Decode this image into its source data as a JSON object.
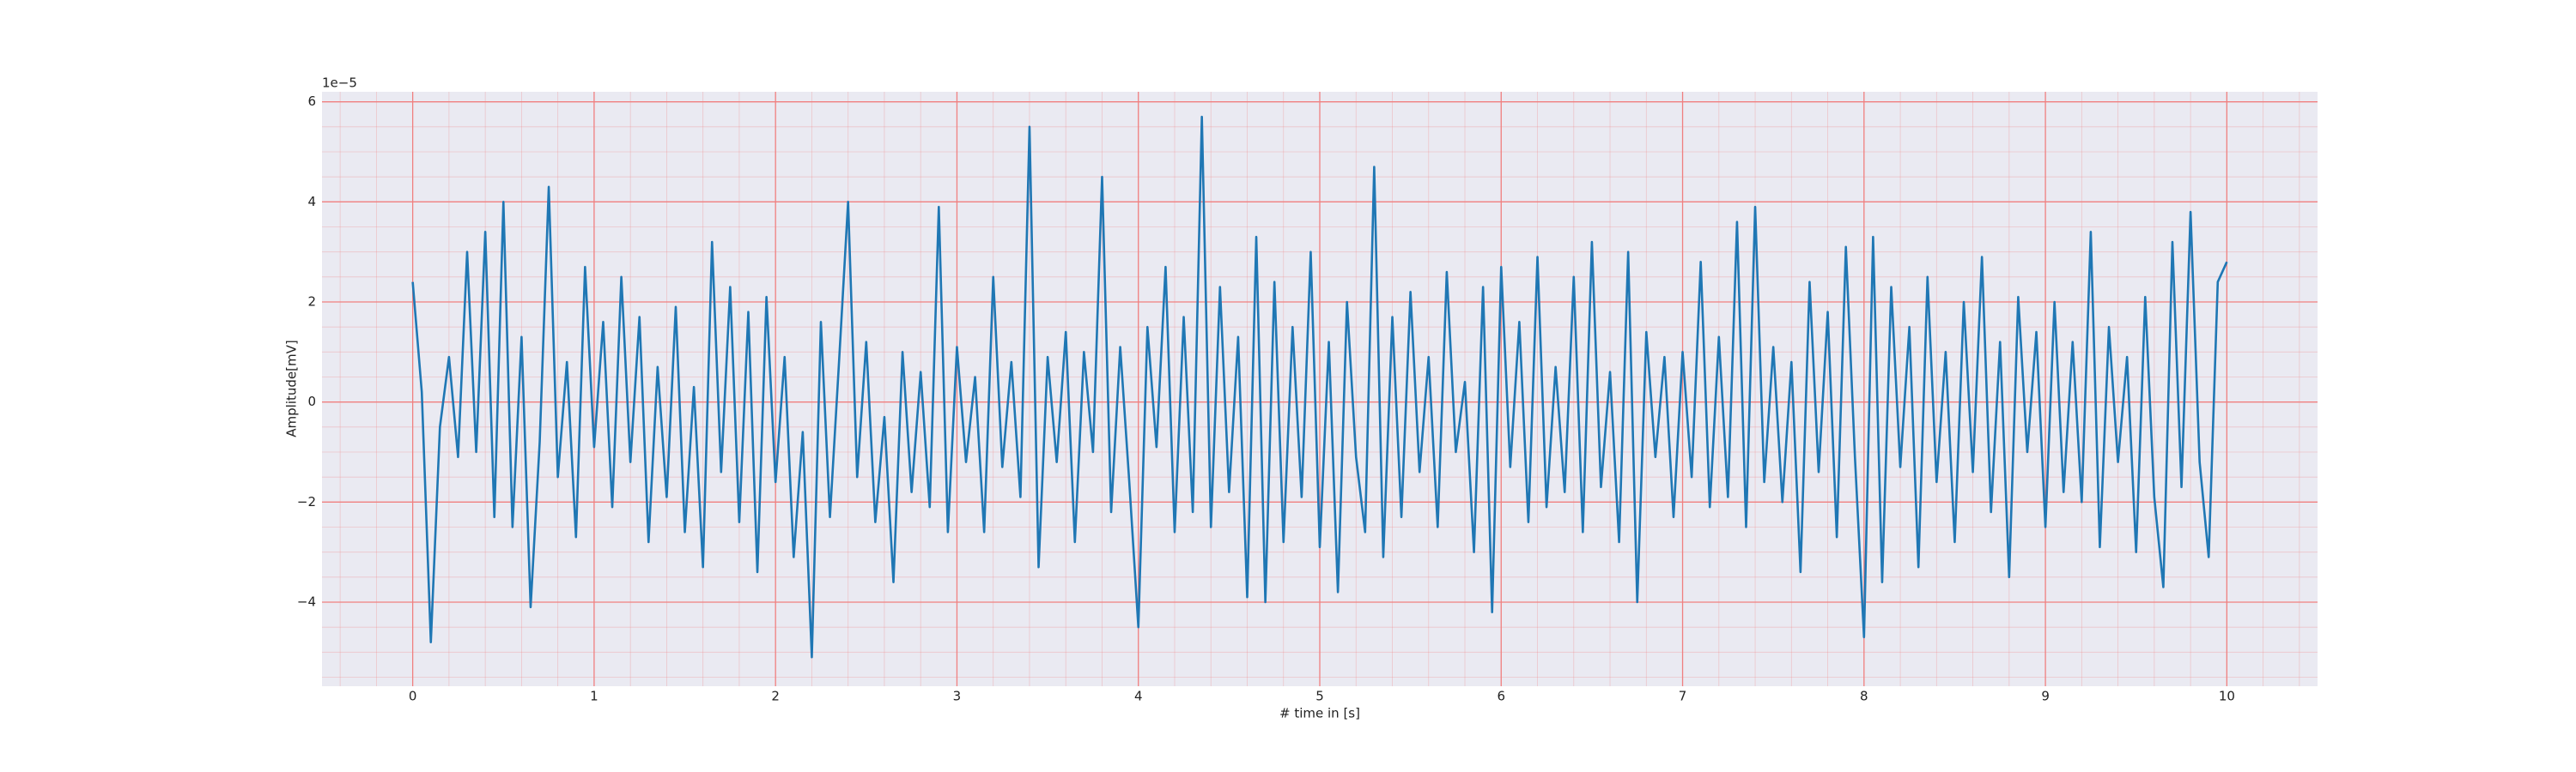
{
  "chart_data": {
    "type": "line",
    "xlabel": "# time in [s]",
    "ylabel": "Amplitude[mV]",
    "y_scale_label": "1e−5",
    "color": "#1f77b4",
    "grid": true,
    "grid_color": "#f08080",
    "minor_grid": true,
    "xlim": [
      -0.5,
      10.5
    ],
    "ylim": [
      -5.68,
      6.2
    ],
    "xticks": [
      0,
      1,
      2,
      3,
      4,
      5,
      6,
      7,
      8,
      9,
      10
    ],
    "yticks": [
      {
        "value": -4,
        "label": "−4"
      },
      {
        "value": -2,
        "label": "−2"
      },
      0,
      2,
      4,
      6
    ],
    "x": [
      0,
      0.05,
      0.1,
      0.15,
      0.2,
      0.25,
      0.3,
      0.35,
      0.4,
      0.45,
      0.5,
      0.55,
      0.6,
      0.65,
      0.7,
      0.75,
      0.8,
      0.85,
      0.9,
      0.95,
      1,
      1.05,
      1.1,
      1.15,
      1.2,
      1.25,
      1.3,
      1.35,
      1.4,
      1.45,
      1.5,
      1.55,
      1.6,
      1.65,
      1.7,
      1.75,
      1.8,
      1.85,
      1.9,
      1.95,
      2,
      2.05,
      2.1,
      2.15,
      2.2,
      2.25,
      2.3,
      2.35,
      2.4,
      2.45,
      2.5,
      2.55,
      2.6,
      2.65,
      2.7,
      2.75,
      2.8,
      2.85,
      2.9,
      2.95,
      3,
      3.05,
      3.1,
      3.15,
      3.2,
      3.25,
      3.3,
      3.35,
      3.4,
      3.45,
      3.5,
      3.55,
      3.6,
      3.65,
      3.7,
      3.75,
      3.8,
      3.85,
      3.9,
      3.95,
      4,
      4.05,
      4.1,
      4.15,
      4.2,
      4.25,
      4.3,
      4.35,
      4.4,
      4.45,
      4.5,
      4.55,
      4.6,
      4.65,
      4.7,
      4.75,
      4.8,
      4.85,
      4.9,
      4.95,
      5,
      5.05,
      5.1,
      5.15,
      5.2,
      5.25,
      5.3,
      5.35,
      5.4,
      5.45,
      5.5,
      5.55,
      5.6,
      5.65,
      5.7,
      5.75,
      5.8,
      5.85,
      5.9,
      5.95,
      6,
      6.05,
      6.1,
      6.15,
      6.2,
      6.25,
      6.3,
      6.35,
      6.4,
      6.45,
      6.5,
      6.55,
      6.6,
      6.65,
      6.7,
      6.75,
      6.8,
      6.85,
      6.9,
      6.95,
      7,
      7.05,
      7.1,
      7.15,
      7.2,
      7.25,
      7.3,
      7.35,
      7.4,
      7.45,
      7.5,
      7.55,
      7.6,
      7.65,
      7.7,
      7.75,
      7.8,
      7.85,
      7.9,
      7.95,
      8,
      8.05,
      8.1,
      8.15,
      8.2,
      8.25,
      8.3,
      8.35,
      8.4,
      8.45,
      8.5,
      8.55,
      8.6,
      8.65,
      8.7,
      8.75,
      8.8,
      8.85,
      8.9,
      8.95,
      9,
      9.05,
      9.1,
      9.15,
      9.2,
      9.25,
      9.3,
      9.35,
      9.4,
      9.45,
      9.5,
      9.55,
      9.6,
      9.65,
      9.7,
      9.75,
      9.8,
      9.85,
      9.9,
      9.95,
      10
    ],
    "values": [
      2.4,
      0.2,
      -4.8,
      -0.5,
      0.9,
      -1.1,
      3.0,
      -1.0,
      3.4,
      -2.3,
      4.0,
      -2.5,
      1.3,
      -4.1,
      -0.8,
      4.3,
      -1.5,
      0.8,
      -2.7,
      2.7,
      -0.9,
      1.6,
      -2.1,
      2.5,
      -1.2,
      1.7,
      -2.8,
      0.7,
      -1.9,
      1.9,
      -2.6,
      0.3,
      -3.3,
      3.2,
      -1.4,
      2.3,
      -2.4,
      1.8,
      -3.4,
      2.1,
      -1.6,
      0.9,
      -3.1,
      -0.6,
      -5.1,
      1.6,
      -2.3,
      0.8,
      4.0,
      -1.5,
      1.2,
      -2.4,
      -0.3,
      -3.6,
      1.0,
      -1.8,
      0.6,
      -2.1,
      3.9,
      -2.6,
      1.1,
      -1.2,
      0.5,
      -2.6,
      2.5,
      -1.3,
      0.8,
      -1.9,
      5.5,
      -3.3,
      0.9,
      -1.2,
      1.4,
      -2.8,
      1.0,
      -1.0,
      4.5,
      -2.2,
      1.1,
      -1.6,
      -4.5,
      1.5,
      -0.9,
      2.7,
      -2.6,
      1.7,
      -2.2,
      5.7,
      -2.5,
      2.3,
      -1.8,
      1.3,
      -3.9,
      3.3,
      -4.0,
      2.4,
      -2.8,
      1.5,
      -1.9,
      3.0,
      -2.9,
      1.2,
      -3.8,
      2.0,
      -1.1,
      -2.6,
      4.7,
      -3.1,
      1.7,
      -2.3,
      2.2,
      -1.4,
      0.9,
      -2.5,
      2.6,
      -1.0,
      0.4,
      -3.0,
      2.3,
      -4.2,
      2.7,
      -1.3,
      1.6,
      -2.4,
      2.9,
      -2.1,
      0.7,
      -1.8,
      2.5,
      -2.6,
      3.2,
      -1.7,
      0.6,
      -2.8,
      3.0,
      -4.0,
      1.4,
      -1.1,
      0.9,
      -2.3,
      1.0,
      -1.5,
      2.8,
      -2.1,
      1.3,
      -1.9,
      3.6,
      -2.5,
      3.9,
      -1.6,
      1.1,
      -2.0,
      0.8,
      -3.4,
      2.4,
      -1.4,
      1.8,
      -2.7,
      3.1,
      -1.1,
      -4.7,
      3.3,
      -3.6,
      2.3,
      -1.3,
      1.5,
      -3.3,
      2.5,
      -1.6,
      1.0,
      -2.8,
      2.0,
      -1.4,
      2.9,
      -2.2,
      1.2,
      -3.5,
      2.1,
      -1.0,
      1.4,
      -2.5,
      2.0,
      -1.8,
      1.2,
      -2.0,
      3.4,
      -2.9,
      1.5,
      -1.2,
      0.9,
      -3.0,
      2.1,
      -1.9,
      -3.7,
      3.2,
      -1.7,
      3.8,
      -1.2,
      -3.1,
      2.4,
      2.8
    ]
  }
}
